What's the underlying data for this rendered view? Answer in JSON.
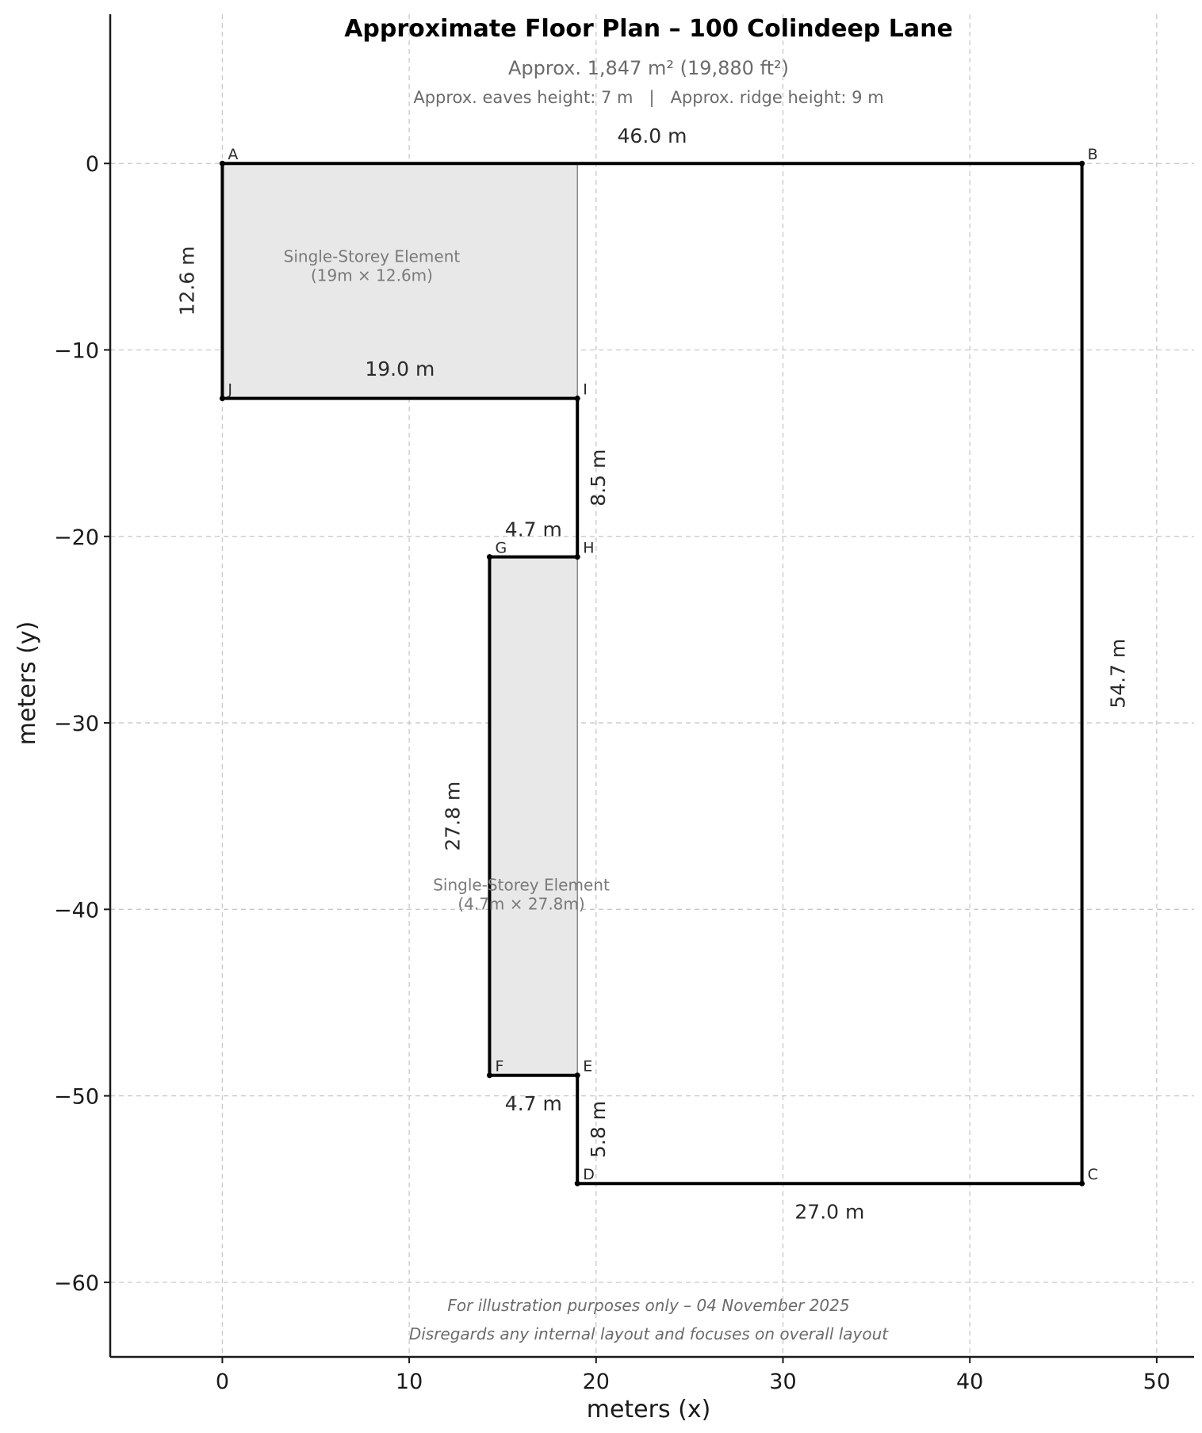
{
  "title": "Approximate Floor Plan – 100 Colindeep Lane",
  "subtitle": "Approx. 1,847 m² (19,880 ft²)",
  "heights": "Approx. eaves height: 7 m   |   Approx. ridge height: 9 m",
  "footer": {
    "line1": "For illustration purposes only – 04 November 2025",
    "line2": "Disregards any internal layout and focuses on overall layout"
  },
  "chart_data": {
    "type": "floor-plan",
    "xlabel": "meters (x)",
    "ylabel": "meters (y)",
    "xlim": [
      -6,
      52
    ],
    "ylim": [
      -64,
      8
    ],
    "xticks": [
      0,
      10,
      20,
      30,
      40,
      50
    ],
    "yticks": [
      0,
      -10,
      -20,
      -30,
      -40,
      -50,
      -60
    ],
    "xtick_labels": [
      "0",
      "10",
      "20",
      "30",
      "40",
      "50"
    ],
    "ytick_labels": [
      "0",
      "−10",
      "−20",
      "−30",
      "−40",
      "−50",
      "−60"
    ],
    "grid": true,
    "outline": [
      {
        "label": "A",
        "x": 0,
        "y": 0
      },
      {
        "label": "B",
        "x": 46,
        "y": 0
      },
      {
        "label": "C",
        "x": 46,
        "y": -54.7
      },
      {
        "label": "D",
        "x": 19,
        "y": -54.7
      },
      {
        "label": "E",
        "x": 19,
        "y": -48.9
      },
      {
        "label": "F",
        "x": 14.3,
        "y": -48.9
      },
      {
        "label": "G",
        "x": 14.3,
        "y": -21.1
      },
      {
        "label": "H",
        "x": 19,
        "y": -21.1
      },
      {
        "label": "I",
        "x": 19,
        "y": -12.6
      },
      {
        "label": "J",
        "x": 0,
        "y": -12.6
      }
    ],
    "regions": [
      {
        "x0": 0,
        "y0": -12.6,
        "x1": 19,
        "y1": 0,
        "label1": "Single-Storey Element",
        "label2": "(19m × 12.6m)",
        "label_x": 8,
        "label_y": -5.8
      },
      {
        "x0": 14.3,
        "y0": -48.9,
        "x1": 19,
        "y1": -21.1,
        "label1": "Single-Storey Element",
        "label2": "(4.7m × 27.8m)",
        "label_x": 16,
        "label_y": -39.5
      }
    ],
    "dimensions": [
      {
        "text": "46.0 m",
        "x": 23,
        "y": 1.5,
        "rotate": false
      },
      {
        "text": "54.7 m",
        "x": 47.9,
        "y": -27.35,
        "rotate": true
      },
      {
        "text": "27.0 m",
        "x": 32.5,
        "y": -56.2,
        "rotate": false
      },
      {
        "text": "5.8 m",
        "x": 20.1,
        "y": -51.8,
        "rotate": true
      },
      {
        "text": "4.7 m",
        "x": 16.65,
        "y": -50.4,
        "rotate": false
      },
      {
        "text": "27.8 m",
        "x": 12.3,
        "y": -35,
        "rotate": true
      },
      {
        "text": "4.7 m",
        "x": 16.65,
        "y": -19.6,
        "rotate": false
      },
      {
        "text": "8.5 m",
        "x": 20.1,
        "y": -16.85,
        "rotate": true
      },
      {
        "text": "19.0 m",
        "x": 9.5,
        "y": -11,
        "rotate": false
      },
      {
        "text": "12.6 m",
        "x": -1.9,
        "y": -6.3,
        "rotate": true
      }
    ]
  }
}
